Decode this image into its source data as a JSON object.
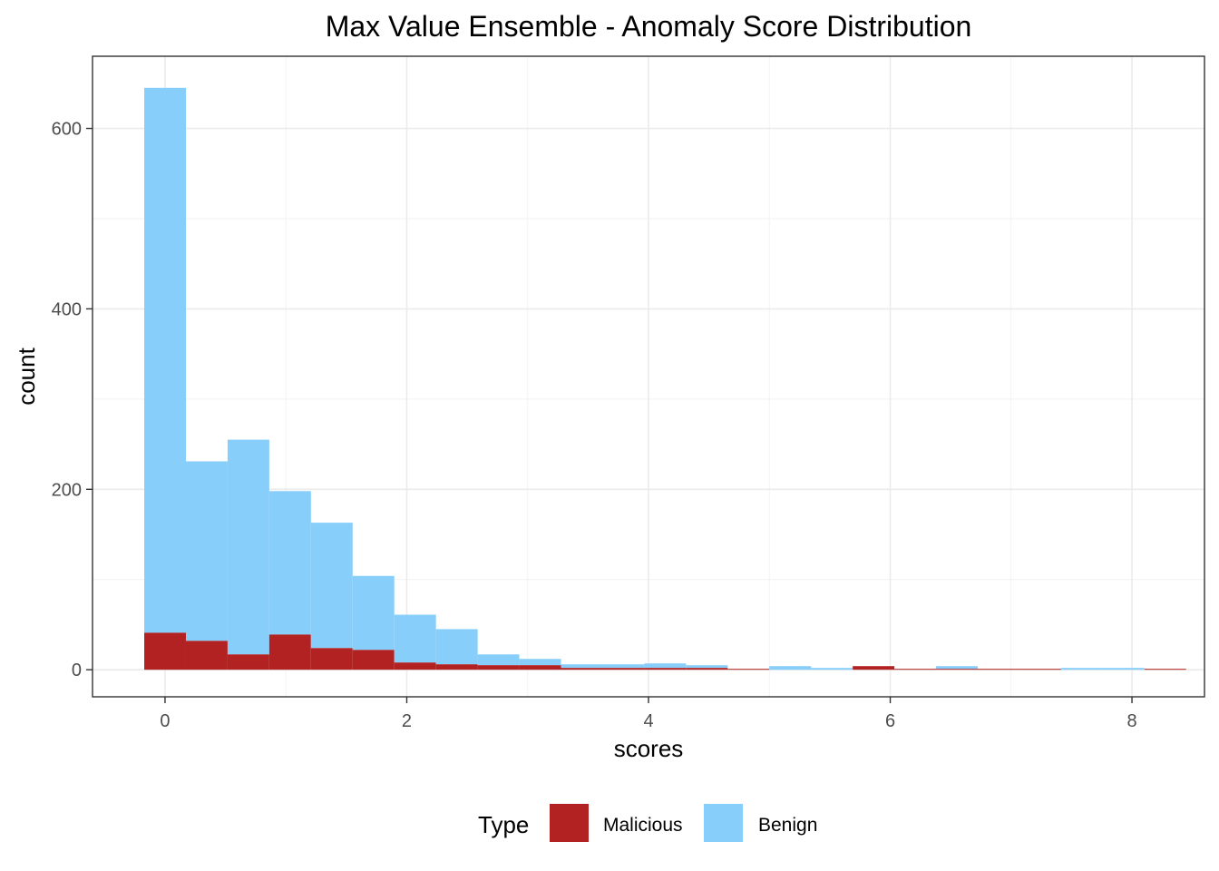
{
  "chart_data": {
    "type": "bar",
    "subtype": "histogram",
    "stacked": true,
    "title": "Max Value Ensemble - Anomaly Score Distribution",
    "xlabel": "scores",
    "ylabel": "count",
    "xlim": [
      -0.6,
      8.6
    ],
    "ylim": [
      -30,
      680
    ],
    "x_ticks": [
      0,
      2,
      4,
      6,
      8
    ],
    "y_ticks": [
      0,
      200,
      400,
      600
    ],
    "grid": true,
    "legend_position": "bottom",
    "legend_title": "Type",
    "bin_width": 0.3448,
    "bin_start": -0.172,
    "bins": 25,
    "series": [
      {
        "name": "Malicious",
        "color": "#B22222",
        "values": [
          41,
          32,
          17,
          39,
          24,
          22,
          8,
          6,
          5,
          5,
          2,
          2,
          2,
          2,
          1,
          0,
          0,
          4,
          1,
          1,
          1,
          1,
          0,
          0,
          1
        ]
      },
      {
        "name": "Benign",
        "color": "#87CEFA",
        "values": [
          604,
          199,
          238,
          159,
          139,
          82,
          53,
          39,
          12,
          7,
          4,
          4,
          5,
          3,
          0,
          4,
          2,
          0,
          0,
          3,
          0,
          0,
          2,
          2,
          0
        ]
      }
    ]
  }
}
